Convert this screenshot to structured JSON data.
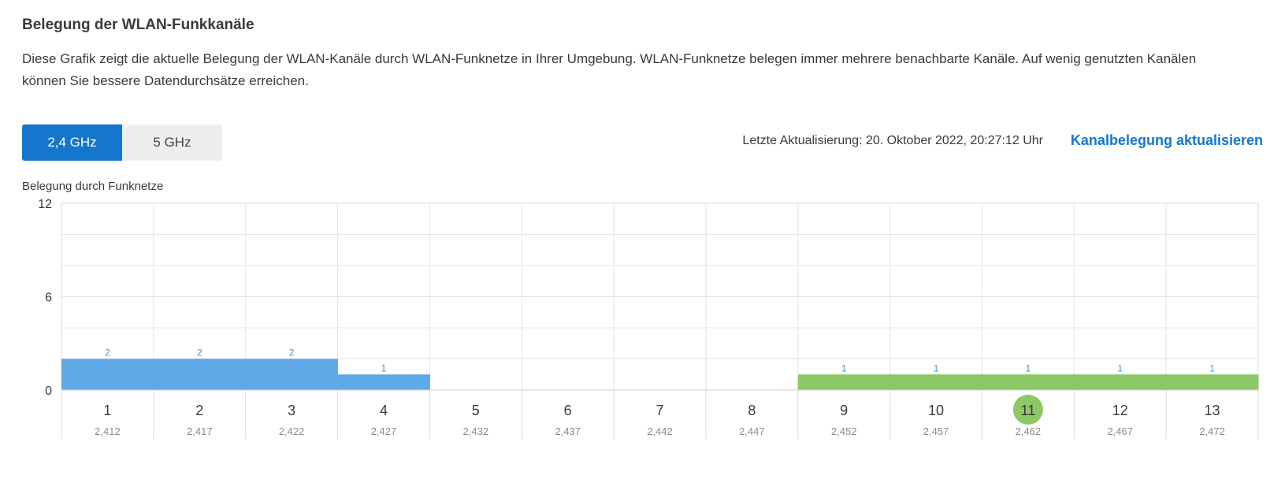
{
  "heading": "Belegung der WLAN-Funkkanäle",
  "description": "Diese Grafik zeigt die aktuelle Belegung der WLAN-Kanäle durch WLAN-Funknetze in Ihrer Umgebung. WLAN-Funknetze belegen immer mehrere benachbarte Kanäle. Auf wenig genutzten Kanälen können Sie bessere Datendurchsätze erreichen.",
  "bands": [
    {
      "label": "2,4 GHz",
      "active": true
    },
    {
      "label": "5 GHz",
      "active": false
    }
  ],
  "last_update": "Letzte Aktualisierung: 20. Oktober 2022, 20:27:12 Uhr",
  "refresh_label": "Kanalbelegung aktualisieren",
  "colors": {
    "accent": "#1476cc",
    "other_networks": "#5ea9e6",
    "own_network": "#8cc866",
    "grid": "#e6e6e6"
  },
  "chart_data": {
    "type": "bar",
    "ylabel": "Belegung durch Funknetze",
    "ylim": [
      0,
      12
    ],
    "yticks": [
      0,
      6,
      12
    ],
    "grid": true,
    "categories": [
      "1",
      "2",
      "3",
      "4",
      "5",
      "6",
      "7",
      "8",
      "9",
      "10",
      "11",
      "12",
      "13"
    ],
    "frequencies": [
      "2,412",
      "2,417",
      "2,422",
      "2,427",
      "2,432",
      "2,437",
      "2,442",
      "2,447",
      "2,452",
      "2,457",
      "2,462",
      "2,467",
      "2,472"
    ],
    "values": [
      2,
      2,
      2,
      1,
      0,
      0,
      0,
      0,
      1,
      1,
      1,
      1,
      1
    ],
    "bar_colors": [
      "blue",
      "blue",
      "blue",
      "blue",
      "blue",
      "blue",
      "blue",
      "blue",
      "green",
      "green",
      "green",
      "green",
      "green"
    ],
    "highlighted_channel": "11"
  }
}
